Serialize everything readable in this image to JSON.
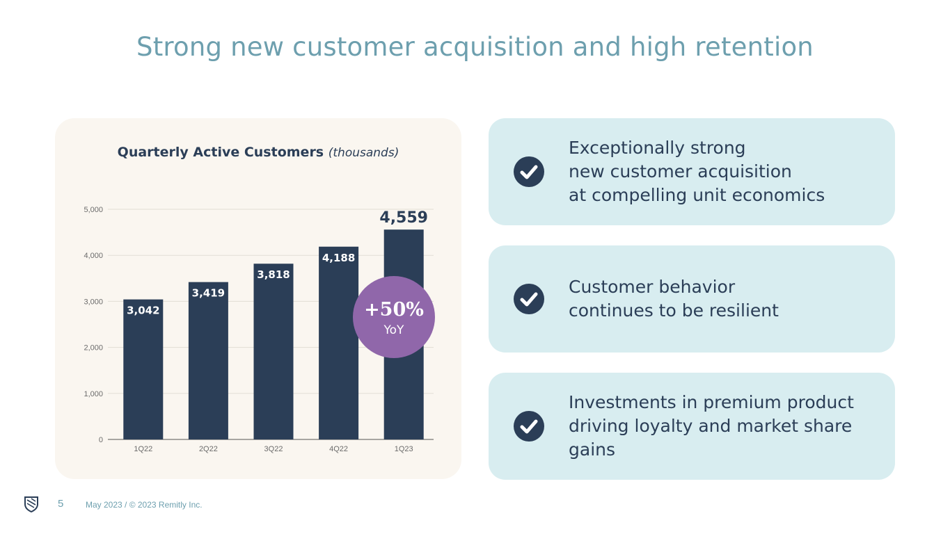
{
  "slide": {
    "title": "Strong new customer acquisition and high retention",
    "page_number": "5",
    "footer": "May 2023 / © 2023 Remitly Inc.",
    "logo_icon": "remitly-shield-logo"
  },
  "chart_data": {
    "type": "bar",
    "title": "Quarterly Active Customers",
    "title_unit": "(thousands)",
    "categories": [
      "1Q22",
      "2Q22",
      "3Q22",
      "4Q22",
      "1Q23"
    ],
    "values": [
      3042,
      3419,
      3818,
      4188,
      4559
    ],
    "labels": [
      "3,042",
      "3,419",
      "3,818",
      "4,188",
      "4,559"
    ],
    "ylim": [
      0,
      5000
    ],
    "yticks": [
      0,
      1000,
      2000,
      3000,
      4000,
      5000
    ],
    "ytick_labels": [
      "0",
      "1,000",
      "2,000",
      "3,000",
      "4,000",
      "5,000"
    ],
    "grid": true,
    "bar_color": "#2b3e57",
    "highlight": {
      "main": "+50%",
      "sub": "YoY",
      "color": "#9067aa"
    }
  },
  "panels": [
    {
      "icon": "check-circle-icon",
      "lines": [
        "Exceptionally strong",
        "new customer acquisition",
        "at compelling unit economics"
      ]
    },
    {
      "icon": "check-circle-icon",
      "lines": [
        "Customer behavior",
        "continues to be resilient"
      ]
    },
    {
      "icon": "check-circle-icon",
      "lines": [
        "Investments in premium product",
        "driving loyalty and market share",
        "gains"
      ]
    }
  ],
  "colors": {
    "title": "#6d9fae",
    "navy": "#2b3e57",
    "panel_bg": "#d8edf0",
    "chart_bg": "#faf6f0",
    "badge": "#9067aa"
  }
}
